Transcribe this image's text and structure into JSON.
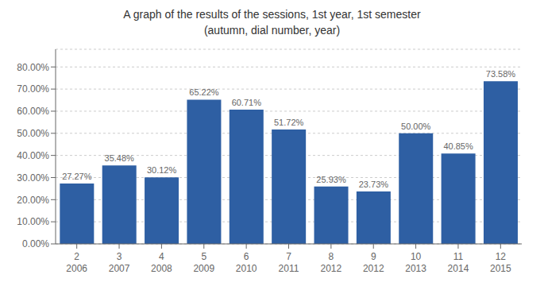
{
  "chart_data": {
    "type": "bar",
    "title": "A graph of the results of the sessions, 1st year, 1st semester\n(autumn, dial number, year)",
    "categories": [
      "2\n2006",
      "3\n2007",
      "4\n2008",
      "5\n2009",
      "6\n2010",
      "7\n2011",
      "8\n2012",
      "9\n2012",
      "10\n2013",
      "11\n2014",
      "12\n2015"
    ],
    "values": [
      0.2727,
      0.3548,
      0.3012,
      0.6522,
      0.6071,
      0.5172,
      0.2593,
      0.2373,
      0.5,
      0.4085,
      0.7358
    ],
    "value_labels": [
      "27.27%",
      "35.48%",
      "30.12%",
      "65.22%",
      "60.71%",
      "51.72%",
      "25.93%",
      "23.73%",
      "50.00%",
      "40.85%",
      "73.58%"
    ],
    "data_labels": true,
    "color": "#2E5FA3",
    "ylim": [
      0,
      0.88
    ],
    "yticks": [
      {
        "value": 0.0,
        "label": "0.00%"
      },
      {
        "value": 0.1,
        "label": "10.00%"
      },
      {
        "value": 0.2,
        "label": "20.00%"
      },
      {
        "value": 0.3,
        "label": "30.00%"
      },
      {
        "value": 0.4,
        "label": "40.00%"
      },
      {
        "value": 0.5,
        "label": "50.00%"
      },
      {
        "value": 0.6,
        "label": "60.00%"
      },
      {
        "value": 0.7,
        "label": "70.00%"
      },
      {
        "value": 0.8,
        "label": "80.00%"
      }
    ],
    "grid": true
  }
}
